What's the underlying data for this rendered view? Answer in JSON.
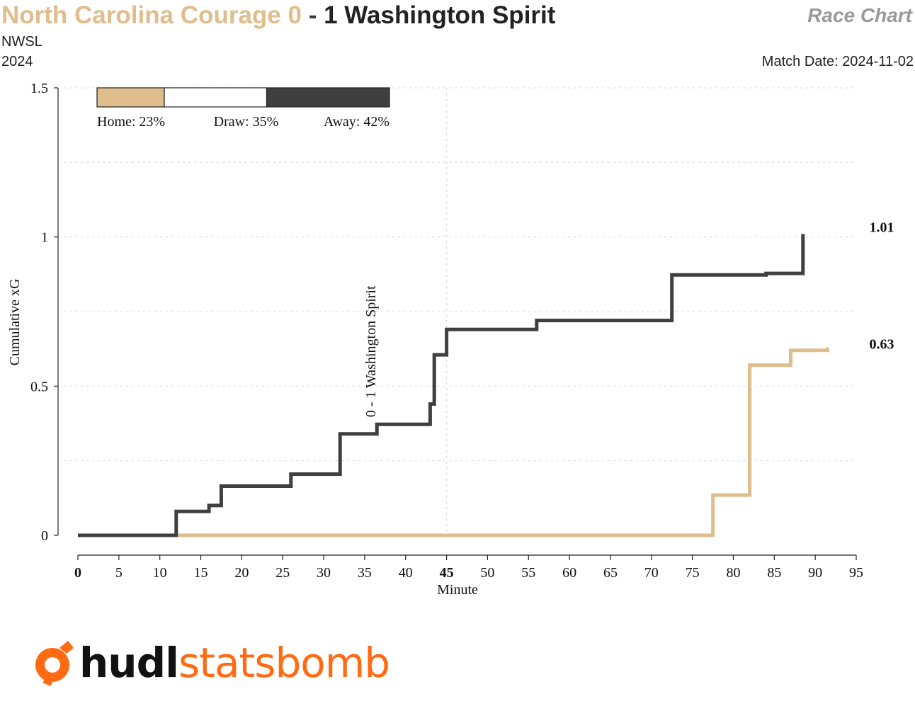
{
  "header": {
    "home_team": "North Carolina Courage",
    "home_score": "0",
    "separator": "-",
    "away_score": "1",
    "away_team": "Washington Spirit",
    "competition": "NWSL",
    "season": "2024",
    "chart_label": "Race Chart",
    "match_date": "Match Date: 2024-11-02"
  },
  "colors": {
    "home": "#dfbd8d",
    "away": "#3f3f3f",
    "grid": "#dddddd",
    "logo_orange": "#ff6a13"
  },
  "logo": {
    "part1": "hudl",
    "part2": "statsbomb",
    "icon": "statsbomb-logo-icon"
  },
  "chart_data": {
    "type": "line",
    "step": true,
    "xlabel": "Minute",
    "ylabel": "Cumulative xG",
    "xlim": [
      0,
      95
    ],
    "ylim": [
      0,
      1.5
    ],
    "x_ticks": [
      0,
      5,
      10,
      15,
      20,
      25,
      30,
      35,
      40,
      45,
      50,
      55,
      60,
      65,
      70,
      75,
      80,
      85,
      90,
      95
    ],
    "x_ticks_bold": [
      0,
      45
    ],
    "y_ticks": [
      0,
      0.5,
      1,
      1.5
    ],
    "y_tick_labels": [
      "0",
      "0.5",
      "1",
      "1.5"
    ],
    "grid": true,
    "halftime_line": 45,
    "win_probability": {
      "home": 23,
      "draw": 35,
      "away": 42,
      "labels": [
        "Home: 23%",
        "Draw: 35%",
        "Away: 42%"
      ]
    },
    "series": [
      {
        "team": "away",
        "points": [
          [
            0,
            0
          ],
          [
            12,
            0
          ],
          [
            12,
            0.08
          ],
          [
            16,
            0.08
          ],
          [
            16,
            0.1
          ],
          [
            17.5,
            0.1
          ],
          [
            17.5,
            0.165
          ],
          [
            26,
            0.165
          ],
          [
            26,
            0.205
          ],
          [
            32,
            0.205
          ],
          [
            32,
            0.34
          ],
          [
            36.5,
            0.34
          ],
          [
            36.5,
            0.372
          ],
          [
            43,
            0.372
          ],
          [
            43,
            0.44
          ],
          [
            43.5,
            0.44
          ],
          [
            43.5,
            0.605
          ],
          [
            45,
            0.605
          ],
          [
            45,
            0.69
          ],
          [
            56,
            0.69
          ],
          [
            56,
            0.72
          ],
          [
            72.5,
            0.72
          ],
          [
            72.5,
            0.873
          ],
          [
            84,
            0.873
          ],
          [
            84,
            0.878
          ],
          [
            88.5,
            0.878
          ],
          [
            88.5,
            1.01
          ]
        ],
        "final_label": "1.01"
      },
      {
        "team": "home",
        "points": [
          [
            0,
            0
          ],
          [
            77.5,
            0
          ],
          [
            77.5,
            0.135
          ],
          [
            82,
            0.135
          ],
          [
            82,
            0.57
          ],
          [
            87,
            0.57
          ],
          [
            87,
            0.62
          ],
          [
            91.5,
            0.62
          ],
          [
            91.5,
            0.63
          ]
        ],
        "final_label": "0.63"
      }
    ],
    "annotations": [
      {
        "x": 36.5,
        "y": 0.372,
        "text": "0 - 1 Washington Spirit"
      }
    ]
  }
}
